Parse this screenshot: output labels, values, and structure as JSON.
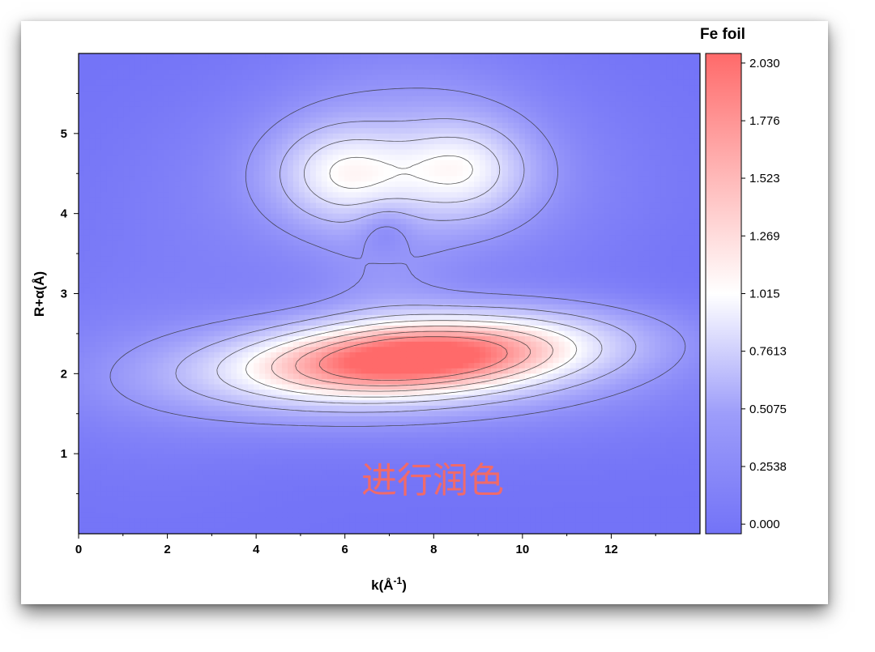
{
  "chart_data": {
    "type": "heatmap",
    "subtype": "contour",
    "title": "Fe foil",
    "xlabel": "k(Å⁻¹)",
    "ylabel": "R+α(Å)",
    "xlim": [
      0,
      14
    ],
    "ylim": [
      0,
      6
    ],
    "x_ticks": [
      "0",
      "2",
      "4",
      "6",
      "8",
      "10",
      "12"
    ],
    "y_ticks": [
      "1",
      "2",
      "3",
      "4",
      "5"
    ],
    "colorbar": {
      "ticks": [
        "2.030",
        "1.776",
        "1.523",
        "1.269",
        "1.015",
        "0.7613",
        "0.5075",
        "0.2538",
        "0.000"
      ],
      "range": [
        0,
        2.03
      ],
      "colors": {
        "low": "#7373f7",
        "mid": "#ffffff",
        "high": "#ff6a6a"
      }
    },
    "contour_levels": [
      0.25,
      0.5,
      0.76,
      1.0,
      1.25,
      1.5,
      1.75
    ],
    "features": [
      {
        "name": "main peak",
        "k": 7.6,
        "R": 2.2,
        "value": 2.03
      },
      {
        "name": "upper lobe",
        "k": 6.0,
        "R": 4.5,
        "value": 1.0
      },
      {
        "name": "upper lobe",
        "k": 8.6,
        "R": 4.55,
        "value": 0.98
      },
      {
        "name": "small lobe",
        "k": 6.9,
        "R": 3.1,
        "value": 0.18
      },
      {
        "name": "small lobe",
        "k": 6.9,
        "R": 3.83,
        "value": 0.14
      }
    ],
    "grid": false,
    "legend": "colorbar-right"
  },
  "annotation": {
    "watermark": "进行润色"
  }
}
